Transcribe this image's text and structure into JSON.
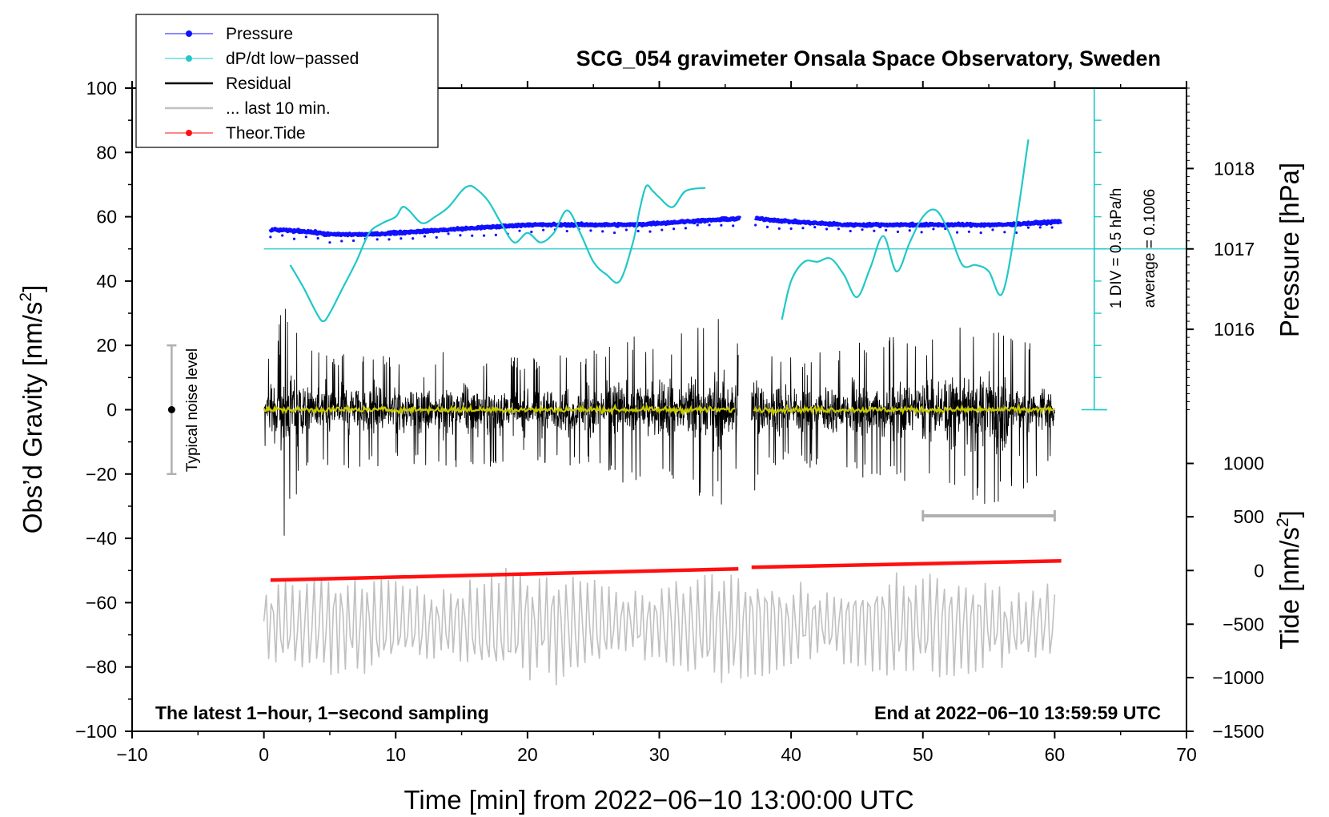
{
  "chart_data": {
    "type": "line",
    "title": "SCG_054 gravimeter Onsala Space Observatory, Sweden",
    "xlabel": "Time [min] from 2022−06−10 13:00:00 UTC",
    "ylabel": "Obs’d Gravity [nm/s",
    "ylabel_sup": "2",
    "ylabel_end": "]",
    "y2label": "Pressure [hPa]",
    "y3label": "Tide [nm/s",
    "y3label_sup": "2",
    "y3label_end": "]",
    "xlim": [
      -10,
      70
    ],
    "ylim": [
      -100,
      100
    ],
    "xticks": [
      -10,
      0,
      10,
      20,
      30,
      40,
      50,
      60,
      70
    ],
    "xtick_labels": [
      "−10",
      "0",
      "10",
      "20",
      "30",
      "40",
      "50",
      "60",
      "70"
    ],
    "yticks": [
      100,
      80,
      60,
      40,
      20,
      0,
      -20,
      -40,
      -60,
      -80,
      -100
    ],
    "ytick_labels": [
      "100",
      "80",
      "60",
      "40",
      "20",
      "0",
      "−20",
      "−40",
      "−60",
      "−80",
      "−100"
    ],
    "pressure_axis": {
      "ticks": [
        1018,
        1017,
        1016
      ],
      "tick_labels": [
        "1018",
        "1017",
        "1016"
      ],
      "gravity_equiv": [
        75,
        50,
        25
      ]
    },
    "tide_axis": {
      "ticks": [
        1000,
        500,
        0,
        -500,
        -1000,
        -1500
      ],
      "tick_labels": [
        "1000",
        "500",
        "0",
        "−500",
        "−1000",
        "−1500"
      ],
      "gravity_equiv": [
        -16.7,
        -33.3,
        -50,
        -66.7,
        -83.3,
        -100
      ]
    },
    "legend": [
      {
        "label": "Pressure",
        "color": "#1010ff",
        "marker": true
      },
      {
        "label": "dP/dt low−passed",
        "color": "#20c8c8",
        "marker": true
      },
      {
        "label": "Residual",
        "color": "#000000",
        "marker": false
      },
      {
        "label": "... last 10 min.",
        "color": "#c0c0c0",
        "marker": false
      },
      {
        "label": "Theor.Tide",
        "color": "#ff1010",
        "marker": true
      }
    ],
    "series": [
      {
        "name": "Pressure",
        "color": "#1010ff",
        "x": [
          0.5,
          3,
          5,
          8,
          12,
          16,
          20,
          24,
          28,
          32,
          36.3,
          37.3,
          40,
          44,
          48,
          52,
          56,
          60.5
        ],
        "values": [
          56,
          55.5,
          54.5,
          54.5,
          55.5,
          56.5,
          57.5,
          57.5,
          57.5,
          58.5,
          59.5,
          59.5,
          58.5,
          57.5,
          57.5,
          57.5,
          57.5,
          58.5
        ]
      },
      {
        "name": "dP/dt low−passed",
        "color": "#20c8c8",
        "segments": [
          {
            "x": [
              2,
              3,
              4,
              4.5,
              5,
              6,
              7,
              8,
              9,
              10,
              10.5,
              11,
              12,
              13,
              14,
              15,
              15.5,
              16,
              17,
              18,
              19,
              20,
              21,
              22,
              23,
              24,
              25,
              26,
              27,
              28,
              28.5,
              29,
              29.5,
              30,
              31,
              32,
              33.5
            ],
            "values": [
              45,
              38,
              30,
              27.5,
              30,
              38,
              46,
              55,
              58,
              60,
              63,
              62,
              58,
              60,
              63,
              68,
              69.5,
              69,
              65,
              58,
              52,
              55,
              52,
              55,
              62,
              55,
              46,
              42,
              40,
              52,
              62,
              69.5,
              68,
              66,
              63,
              68,
              69
            ]
          },
          {
            "x": [
              39.3,
              40,
              41,
              42,
              43,
              44,
              45,
              46,
              47,
              48,
              49,
              50,
              51,
              52,
              53,
              54,
              55,
              56,
              57,
              58
            ],
            "values": [
              28,
              40,
              46,
              46,
              47,
              42,
              35,
              44,
              54,
              43,
              52,
              60,
              62,
              55,
              45,
              45,
              43,
              36,
              56,
              84
            ]
          }
        ]
      },
      {
        "name": "Residual",
        "color": "#000000",
        "x_range": [
          0,
          60
        ],
        "gaps": [
          [
            36,
            37
          ]
        ],
        "envelope": {
          "x": [
            0,
            1,
            1.5,
            2,
            3,
            5,
            8,
            10,
            15,
            20,
            25,
            28,
            30,
            34,
            35,
            36,
            37,
            38,
            40,
            45,
            48,
            50,
            55,
            58,
            60
          ],
          "values": [
            12,
            26,
            40,
            33,
            19,
            18,
            19,
            17,
            19,
            16,
            19,
            24,
            21,
            29,
            30,
            21,
            30,
            19,
            17,
            21,
            23,
            21,
            31,
            24,
            15
          ]
        }
      },
      {
        "name": "Residual smoothed",
        "color": "#c8c800",
        "x_range": [
          0,
          60
        ],
        "values": [
          0
        ]
      },
      {
        "name": "... last 10 min.",
        "color": "#c0c0c0",
        "x_range": [
          0,
          60
        ],
        "center": -67,
        "amplitude": 17
      },
      {
        "name": "Theor.Tide",
        "color": "#ff1010",
        "x": [
          0.5,
          36,
          37,
          60.5
        ],
        "values": [
          -53,
          -49.5,
          -49,
          -47
        ]
      }
    ],
    "annotations": {
      "noise_label": "Typical noise level",
      "noise_bar": {
        "x": -7,
        "y_low": -20,
        "y_high": 20,
        "center": 0
      },
      "last10_bar": {
        "x_low": 50,
        "x_high": 60,
        "y": -33
      },
      "scale_label_1": "1 DIV = 0.5 hPa/h",
      "scale_label_2": "average = 0.1006",
      "dpdt_axis": {
        "x": 63,
        "y_low": 0,
        "y_high": 100,
        "average_y": 50
      },
      "bottom_left": "The latest 1−hour, 1−second sampling",
      "bottom_right": "End at 2022−06−10 13:59:59 UTC"
    }
  }
}
